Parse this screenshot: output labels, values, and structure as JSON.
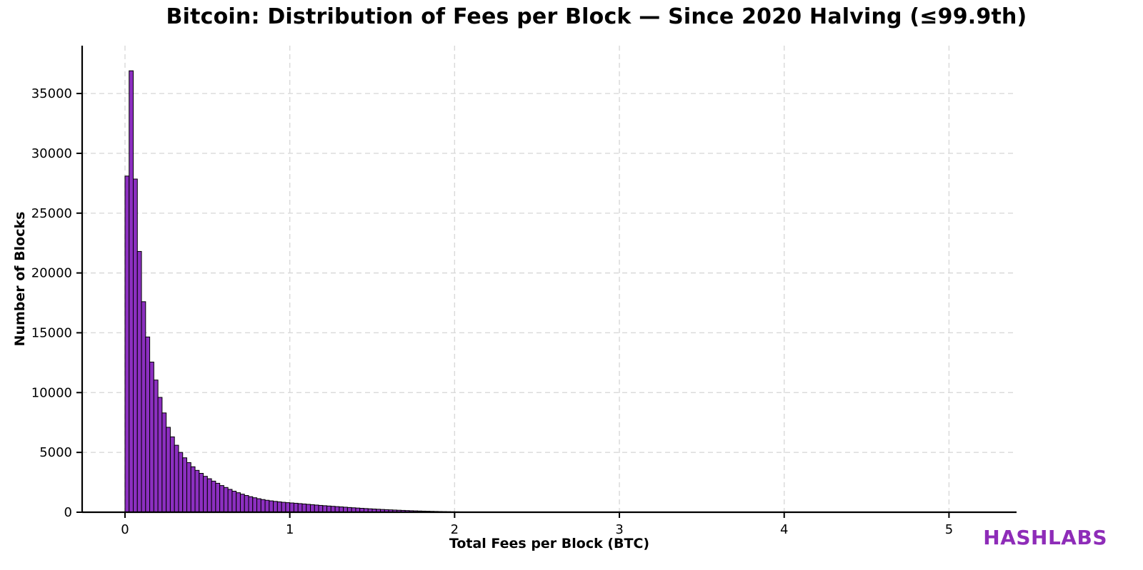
{
  "title": "Bitcoin: Distribution of Fees per Block — Since 2020 Halving (≤99.9th)",
  "watermark": {
    "text": "HASHLABS",
    "color": "#8e2cb8"
  },
  "colors": {
    "bar_fill": "#8c2fc0",
    "bar_edge": "#000000",
    "grid": "#d9d9d9",
    "axis": "#000000",
    "background": "#ffffff"
  },
  "chart_data": {
    "type": "bar",
    "subtype": "histogram",
    "title": "Bitcoin: Distribution of Fees per Block — Since 2020 Halving (≤99.9th)",
    "xlabel": "Total Fees per Block (BTC)",
    "ylabel": "Number of Blocks",
    "bin_start": 0.0,
    "bin_width": 0.025,
    "values": [
      28100,
      36900,
      27850,
      21800,
      17600,
      14650,
      12550,
      11050,
      9600,
      8300,
      7100,
      6300,
      5600,
      5000,
      4550,
      4150,
      3800,
      3500,
      3250,
      3000,
      2800,
      2600,
      2420,
      2230,
      2070,
      1910,
      1760,
      1630,
      1510,
      1400,
      1300,
      1210,
      1130,
      1060,
      1000,
      950,
      905,
      865,
      830,
      800,
      775,
      750,
      720,
      690,
      660,
      630,
      600,
      570,
      545,
      520,
      495,
      470,
      445,
      420,
      395,
      372,
      350,
      328,
      307,
      287,
      268,
      249,
      231,
      214,
      198,
      182,
      167,
      153,
      139,
      126,
      114,
      103,
      93,
      83,
      74,
      66,
      58,
      51,
      45,
      39,
      34,
      30,
      26,
      23,
      20,
      18,
      16,
      14,
      13,
      12,
      11,
      10,
      9,
      8,
      7,
      7,
      6,
      6,
      5,
      5,
      5,
      4,
      4,
      4,
      3,
      3,
      3,
      3,
      2,
      2,
      2,
      2,
      2,
      2,
      1,
      1,
      1,
      1,
      1,
      1,
      1,
      1
    ],
    "xlim": [
      -0.26,
      5.41
    ],
    "ylim": [
      0,
      39000
    ],
    "xticks": [
      0,
      1,
      2,
      3,
      4,
      5
    ],
    "yticks": [
      0,
      5000,
      10000,
      15000,
      20000,
      25000,
      30000,
      35000
    ],
    "grid": true,
    "grid_style": "dashed",
    "legend": "none"
  }
}
